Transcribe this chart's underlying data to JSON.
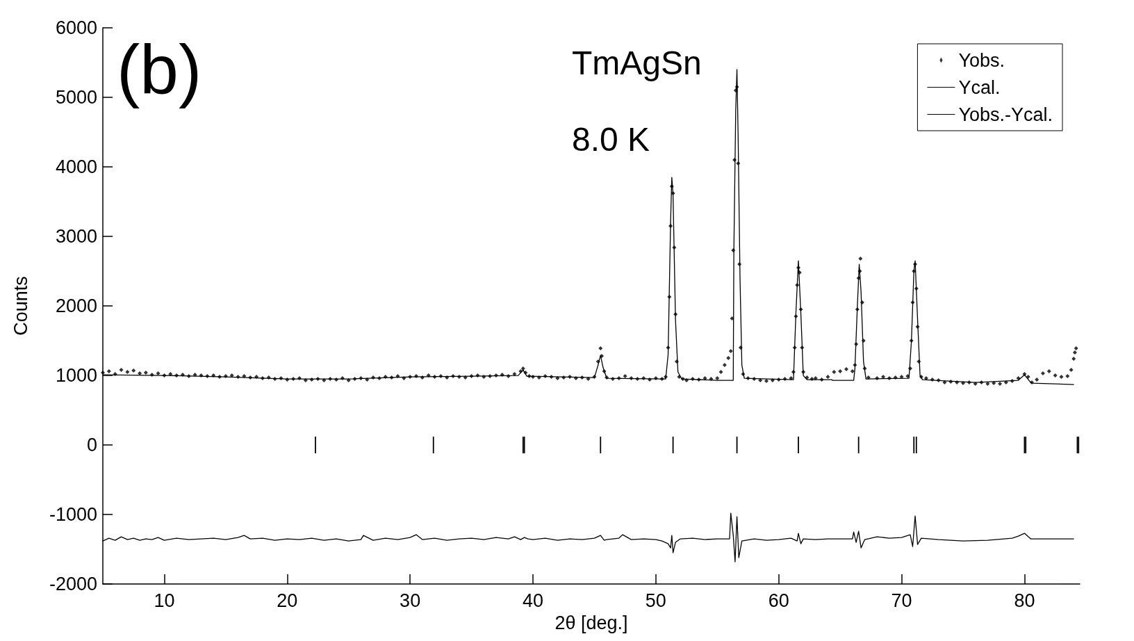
{
  "chart_data": {
    "type": "scatter",
    "xlabel": "2θ [deg.]",
    "ylabel": "Counts",
    "annotations": [
      "(b)",
      "TmAgSn",
      "8.0 K"
    ],
    "xlim": [
      5,
      84.5
    ],
    "xticks": [
      10,
      20,
      30,
      40,
      50,
      60,
      70,
      80
    ],
    "ylim": [
      -2000,
      6000
    ],
    "yticks": [
      -2000,
      -1000,
      0,
      1000,
      2000,
      3000,
      4000,
      5000,
      6000
    ],
    "grid": false,
    "legend": "top right",
    "series": [
      {
        "name": "Yobs.",
        "marker": "diamond",
        "color": "#000000",
        "x": [
          5,
          5.5,
          6,
          6.5,
          7,
          7.5,
          8,
          8.5,
          9,
          9.5,
          10,
          10.5,
          11,
          11.5,
          12,
          12.5,
          13,
          13.5,
          14,
          14.5,
          15,
          15.5,
          16,
          16.5,
          17,
          17.5,
          18,
          18.5,
          19,
          19.5,
          20,
          20.5,
          21,
          21.5,
          22,
          22.5,
          23,
          23.5,
          24,
          24.5,
          25,
          25.5,
          26,
          26.5,
          27,
          27.5,
          28,
          28.5,
          29,
          29.5,
          30,
          30.5,
          31,
          31.5,
          32,
          32.5,
          33,
          33.5,
          34,
          34.5,
          35,
          35.5,
          36,
          36.5,
          37,
          37.5,
          38,
          38.5,
          39,
          39.2,
          39.4,
          39.7,
          40,
          40.5,
          41,
          41.5,
          42,
          42.5,
          43,
          43.5,
          44,
          44.5,
          45,
          45.3,
          45.5,
          45.6,
          45.8,
          46,
          46.5,
          47,
          47.5,
          48,
          48.5,
          49,
          49.5,
          50,
          50.5,
          50.8,
          51,
          51.1,
          51.2,
          51.3,
          51.4,
          51.5,
          51.6,
          51.7,
          51.9,
          52.2,
          52.5,
          53,
          53.5,
          54,
          54.5,
          55,
          55.3,
          55.6,
          55.9,
          56.1,
          56.2,
          56.3,
          56.4,
          56.5,
          56.6,
          56.7,
          56.8,
          56.9,
          57.1,
          57.5,
          58,
          58.5,
          59,
          59.5,
          60,
          60.5,
          61,
          61.2,
          61.3,
          61.4,
          61.5,
          61.6,
          61.7,
          61.8,
          61.9,
          62,
          62.3,
          62.7,
          63,
          63.5,
          64,
          64.5,
          65,
          65.5,
          66,
          66.2,
          66.3,
          66.4,
          66.5,
          66.6,
          66.65,
          66.8,
          66.9,
          67,
          67.3,
          68,
          68.5,
          69,
          69.5,
          70,
          70.5,
          70.7,
          70.8,
          70.9,
          71,
          71.1,
          71.2,
          71.3,
          71.4,
          71.6,
          72,
          72.5,
          73,
          73.5,
          74,
          74.5,
          75,
          75.5,
          76,
          76.5,
          77,
          77.5,
          78,
          78.5,
          79,
          79.5,
          80,
          80.3,
          80.6,
          81,
          81.5,
          82,
          82.5,
          83,
          83.5,
          83.8,
          84,
          84.1,
          84.2
        ],
        "values": [
          1040,
          1060,
          1020,
          1080,
          1050,
          1070,
          1030,
          1040,
          1010,
          1030,
          1000,
          1020,
          1000,
          1010,
          990,
          1010,
          1000,
          990,
          1000,
          980,
          990,
          1000,
          980,
          990,
          970,
          980,
          960,
          970,
          950,
          960,
          940,
          950,
          960,
          930,
          940,
          950,
          930,
          950,
          940,
          960,
          930,
          950,
          960,
          940,
          970,
          960,
          980,
          970,
          990,
          960,
          980,
          990,
          970,
          1000,
          980,
          990,
          970,
          990,
          980,
          970,
          990,
          1000,
          980,
          990,
          1000,
          1010,
          990,
          1020,
          1060,
          1100,
          1040,
          990,
          980,
          970,
          990,
          980,
          960,
          970,
          980,
          960,
          970,
          950,
          980,
          1200,
          1390,
          1280,
          1060,
          970,
          950,
          960,
          990,
          960,
          950,
          960,
          940,
          960,
          950,
          980,
          1400,
          2130,
          3150,
          3720,
          3620,
          2840,
          1880,
          1200,
          980,
          950,
          930,
          950,
          940,
          960,
          950,
          960,
          1050,
          1150,
          1250,
          1350,
          1820,
          2800,
          4100,
          5100,
          5150,
          4050,
          2600,
          1400,
          1020,
          960,
          950,
          930,
          920,
          930,
          940,
          950,
          960,
          1050,
          1400,
          1850,
          2300,
          2550,
          2480,
          1950,
          1400,
          1050,
          970,
          950,
          960,
          940,
          980,
          1050,
          1060,
          1090,
          1060,
          1150,
          1450,
          1950,
          2400,
          2500,
          2680,
          2050,
          1500,
          1100,
          970,
          960,
          980,
          960,
          970,
          980,
          990,
          1100,
          1500,
          2050,
          2500,
          2600,
          2250,
          1700,
          1200,
          980,
          960,
          940,
          930,
          900,
          910,
          900,
          890,
          900,
          880,
          900,
          880,
          890,
          880,
          900,
          920,
          960,
          1020,
          980,
          900,
          940,
          1030,
          1060,
          1000,
          980,
          990,
          1080,
          1240,
          1330,
          1390
        ]
      },
      {
        "name": "Ycal.",
        "type": "line",
        "marker": "none",
        "line_style": "solid",
        "color": "#000000",
        "x": [
          5,
          10,
          15,
          20,
          25,
          30,
          35,
          38.8,
          39.2,
          39.5,
          45,
          45.3,
          45.5,
          45.7,
          46,
          50.8,
          51,
          51.2,
          51.3,
          51.4,
          51.6,
          51.8,
          52.1,
          55,
          56.3,
          56.35,
          56.5,
          56.6,
          56.7,
          56.85,
          57,
          57.2,
          61.2,
          61.4,
          61.6,
          61.8,
          62,
          62.3,
          64.3,
          64.4,
          66.1,
          66.2,
          66.4,
          66.55,
          66.7,
          66.9,
          67.1,
          70.6,
          70.8,
          71,
          71.1,
          71.3,
          71.5,
          71.7,
          76,
          79.5,
          80,
          80.5,
          80.6,
          84
        ],
        "values": [
          1010,
          1000,
          980,
          950,
          950,
          980,
          990,
          1000,
          1080,
          990,
          970,
          1150,
          1290,
          1120,
          960,
          950,
          1300,
          3200,
          3850,
          3600,
          1800,
          1050,
          950,
          930,
          930,
          2800,
          4800,
          5400,
          4400,
          2400,
          1150,
          960,
          940,
          1900,
          2650,
          1900,
          1000,
          940,
          940,
          930,
          930,
          1100,
          2000,
          2600,
          2200,
          1200,
          950,
          960,
          1500,
          2500,
          2650,
          1800,
          1000,
          940,
          900,
          930,
          1010,
          900,
          890,
          870
        ]
      },
      {
        "name": "Yobs.-Ycal.",
        "type": "line",
        "marker": "none",
        "line_style": "solid",
        "color": "#000000",
        "x": [
          5,
          5.5,
          6,
          6.5,
          7,
          7.5,
          8,
          8.5,
          9,
          9.5,
          10,
          11,
          12,
          13,
          14,
          15,
          16,
          16.5,
          17,
          18,
          19,
          20,
          21,
          22,
          23,
          24,
          25,
          26,
          26.2,
          27,
          28,
          29,
          30,
          30.5,
          31,
          32,
          33,
          34,
          35,
          36,
          37,
          38,
          38.5,
          39,
          39.3,
          39.6,
          40,
          41,
          42,
          43,
          44,
          45,
          45.5,
          45.8,
          46,
          47,
          47.3,
          48,
          49,
          50,
          50.5,
          51,
          51.2,
          51.3,
          51.4,
          51.6,
          52,
          53,
          54,
          55,
          56,
          56.1,
          56.3,
          56.45,
          56.6,
          56.75,
          57,
          58,
          59,
          60,
          61,
          61.5,
          61.6,
          61.8,
          62,
          63,
          64,
          64.5,
          66,
          66.1,
          66.3,
          66.5,
          66.7,
          67,
          68,
          69,
          70,
          70.7,
          70.9,
          71.1,
          71.3,
          71.6,
          73,
          75,
          77,
          79,
          79.5,
          80,
          80.5,
          84
        ],
        "values": [
          -1380,
          -1340,
          -1370,
          -1320,
          -1360,
          -1340,
          -1370,
          -1350,
          -1360,
          -1330,
          -1370,
          -1340,
          -1360,
          -1350,
          -1340,
          -1360,
          -1330,
          -1300,
          -1350,
          -1340,
          -1370,
          -1350,
          -1360,
          -1340,
          -1370,
          -1350,
          -1380,
          -1360,
          -1300,
          -1370,
          -1340,
          -1360,
          -1330,
          -1290,
          -1360,
          -1340,
          -1370,
          -1350,
          -1340,
          -1360,
          -1330,
          -1350,
          -1320,
          -1360,
          -1330,
          -1350,
          -1360,
          -1340,
          -1370,
          -1350,
          -1360,
          -1340,
          -1300,
          -1370,
          -1360,
          -1340,
          -1290,
          -1360,
          -1350,
          -1360,
          -1380,
          -1420,
          -1480,
          -1300,
          -1550,
          -1400,
          -1350,
          -1340,
          -1360,
          -1350,
          -1350,
          -980,
          -1300,
          -1680,
          -1030,
          -1620,
          -1380,
          -1350,
          -1370,
          -1360,
          -1340,
          -1380,
          -1270,
          -1420,
          -1350,
          -1360,
          -1350,
          -1350,
          -1350,
          -1250,
          -1400,
          -1240,
          -1480,
          -1360,
          -1320,
          -1340,
          -1330,
          -1290,
          -1460,
          -1020,
          -1430,
          -1340,
          -1360,
          -1380,
          -1370,
          -1340,
          -1310,
          -1270,
          -1350,
          -1350
        ]
      },
      {
        "type": "bar",
        "color": "#000000",
        "base": [
          -120,
          -120,
          -120,
          -120,
          -120,
          -120,
          -120,
          -120,
          -120,
          -120,
          -120,
          -120,
          -120,
          -120,
          -120
        ],
        "x": [
          22.3,
          31.9,
          39.2,
          39.3,
          45.5,
          51.4,
          56.6,
          61.6,
          66.5,
          71.0,
          71.2,
          80.0,
          80.1,
          84.3,
          84.4
        ],
        "values": [
          240,
          240,
          240,
          240,
          240,
          240,
          240,
          240,
          240,
          240,
          240,
          240,
          240,
          240,
          240
        ]
      }
    ]
  }
}
